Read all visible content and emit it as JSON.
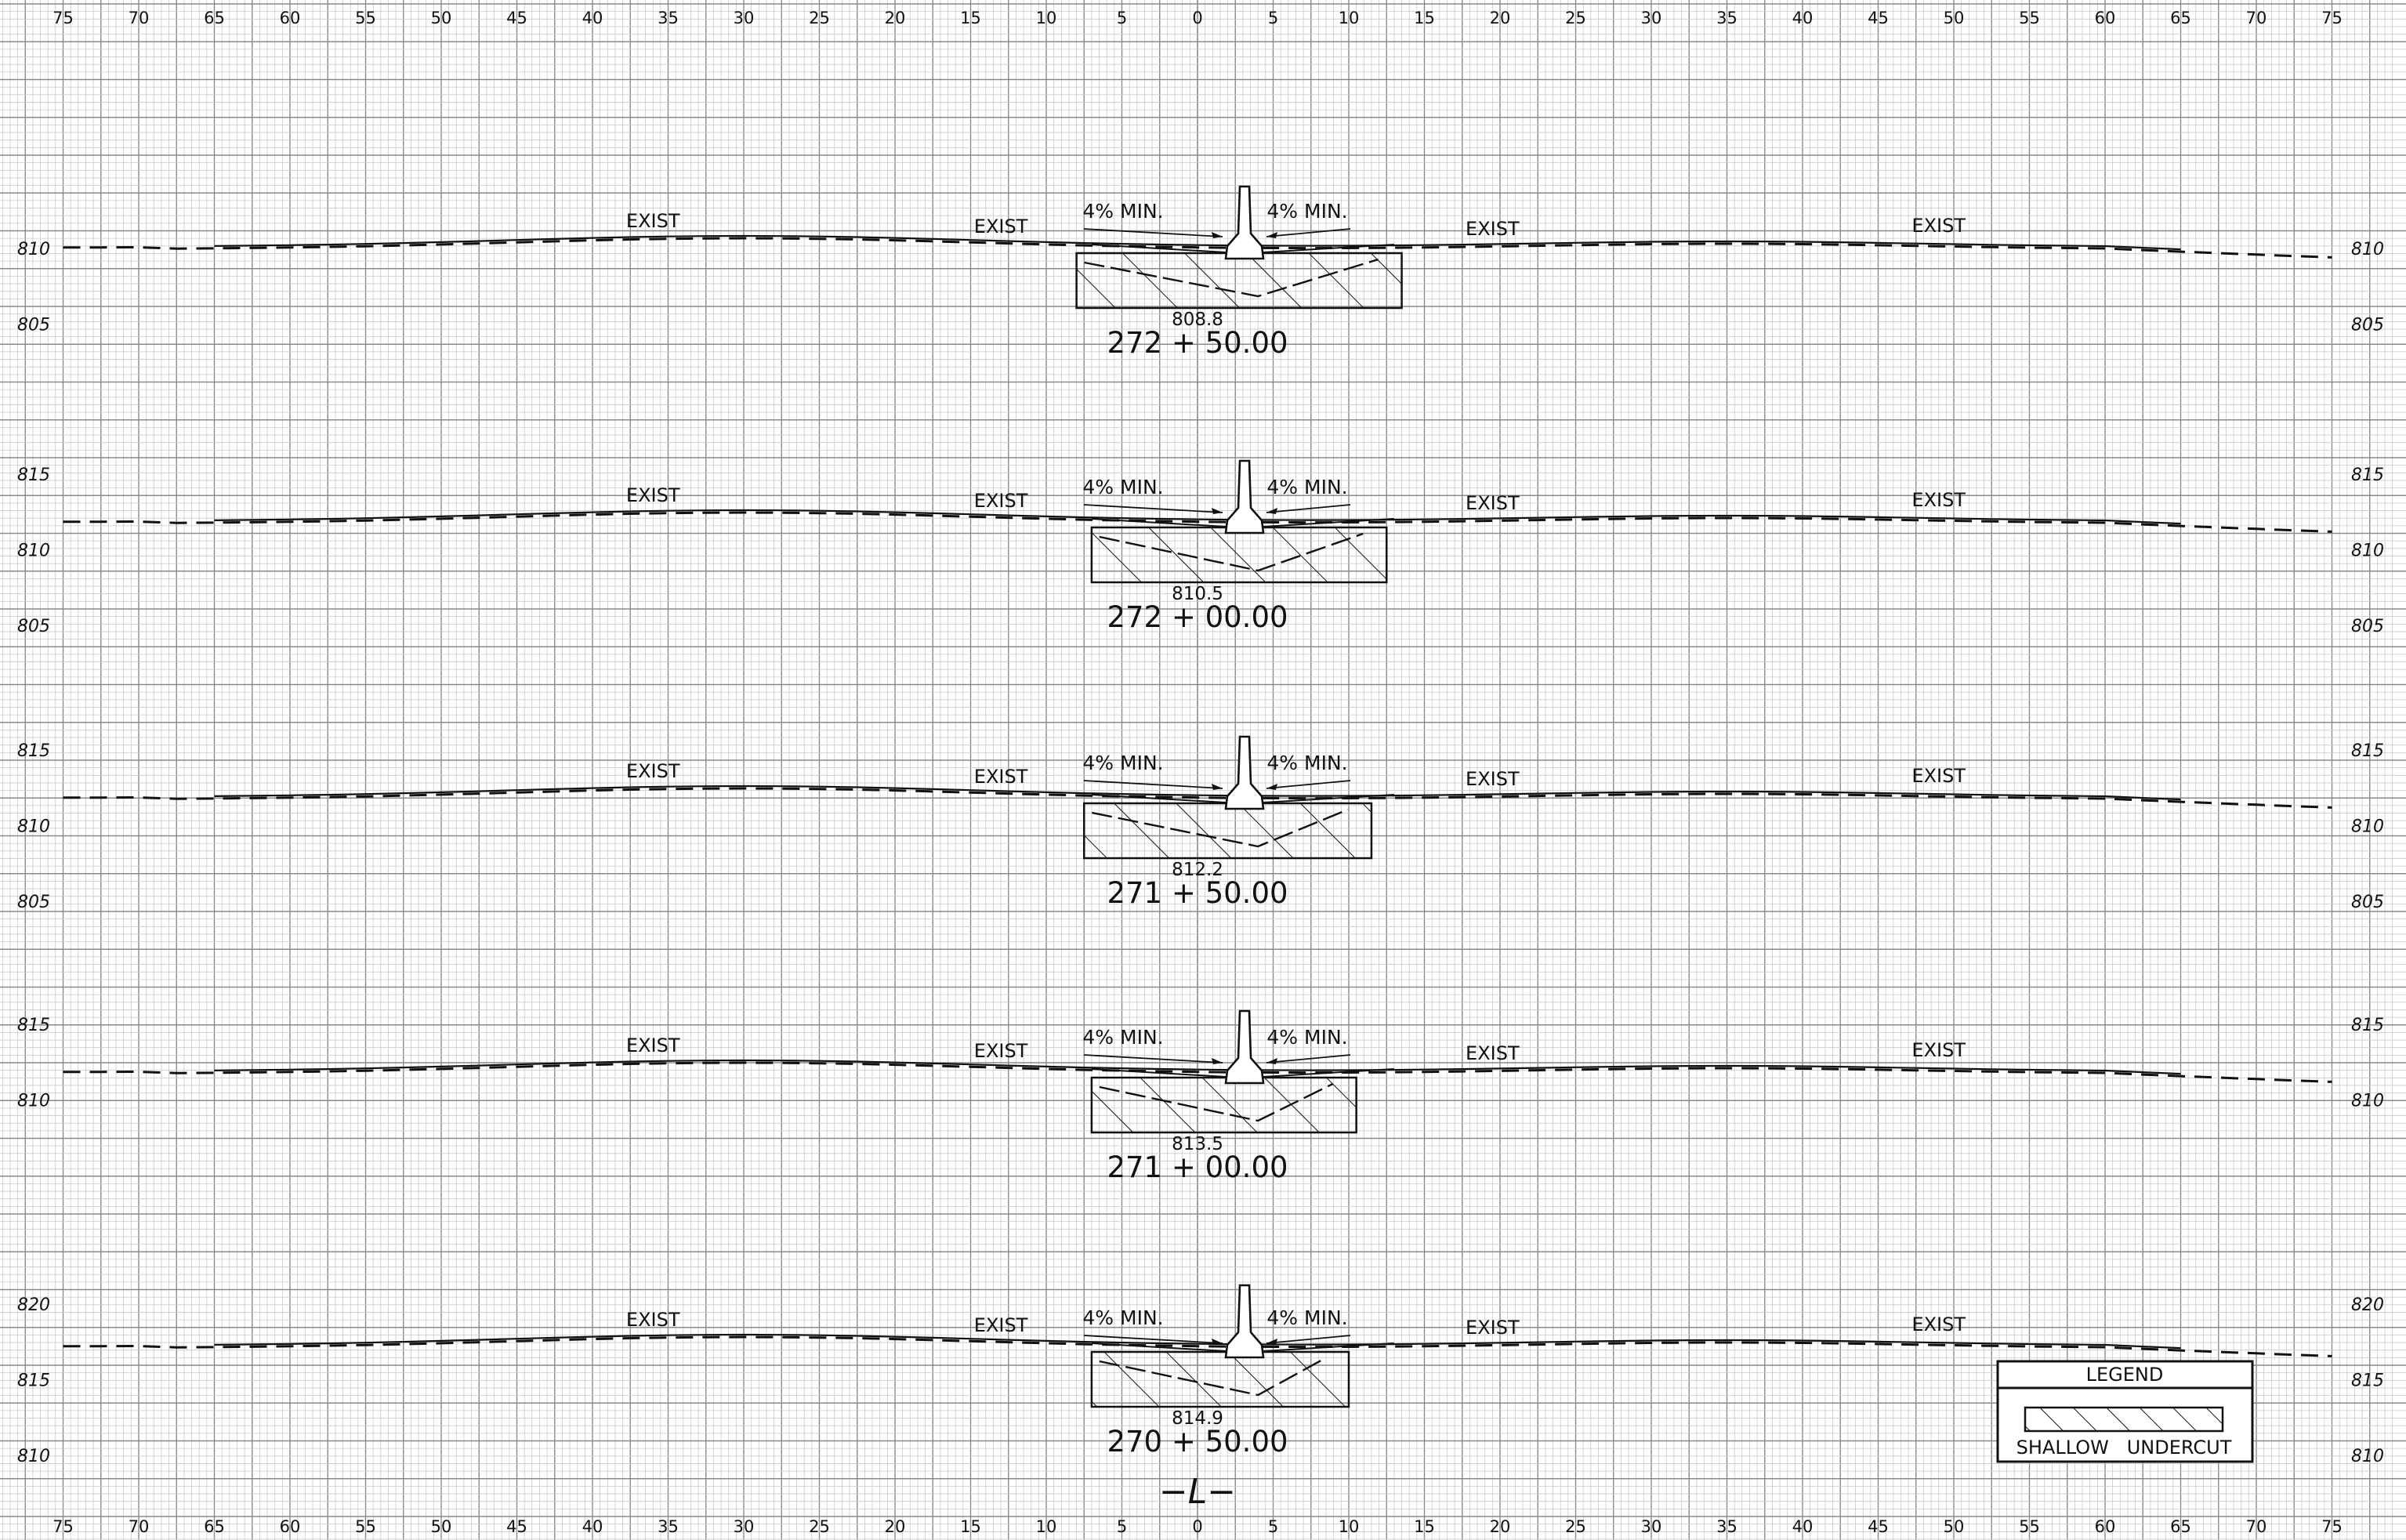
{
  "drawing": {
    "offset_scale": {
      "left_labels": [
        "75",
        "70",
        "65",
        "60",
        "55",
        "50",
        "45",
        "40",
        "35",
        "30",
        "25",
        "20",
        "15",
        "10",
        "5",
        "0",
        "5",
        "10",
        "15",
        "20",
        "25",
        "30",
        "35",
        "40",
        "45",
        "50",
        "55",
        "60",
        "65",
        "70",
        "75"
      ]
    },
    "slope_text": "4%  MIN.",
    "exist_text": "EXIST",
    "centerline_symbol": "−L−",
    "colors": {
      "ink": "#111111",
      "grid_minor": "#c9c9c9",
      "grid_major": "#8a8a8a"
    },
    "sections": [
      {
        "station": "272 + 50.00",
        "invert": "808.8",
        "elevation_labels": [
          "810",
          "805"
        ]
      },
      {
        "station": "272 + 00.00",
        "invert": "810.5",
        "elevation_labels": [
          "815",
          "810",
          "805"
        ]
      },
      {
        "station": "271 + 50.00",
        "invert": "812.2",
        "elevation_labels": [
          "815",
          "810",
          "805"
        ]
      },
      {
        "station": "271 + 00.00",
        "invert": "813.5",
        "elevation_labels": [
          "815",
          "810"
        ]
      },
      {
        "station": "270 + 50.00",
        "invert": "814.9",
        "elevation_labels": [
          "820",
          "815",
          "810"
        ]
      }
    ],
    "legend": {
      "title": "LEGEND",
      "item": "SHALLOW   UNDERCUT"
    }
  }
}
